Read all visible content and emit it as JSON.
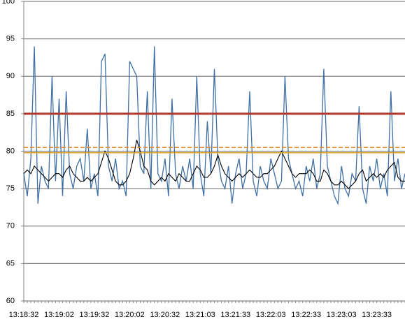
{
  "chart_data": {
    "type": "line",
    "categories": [
      "13:18:32",
      null,
      null,
      null,
      null,
      null,
      null,
      null,
      null,
      null,
      "13:19:02",
      null,
      null,
      null,
      null,
      null,
      null,
      null,
      null,
      null,
      "13:19:32",
      null,
      null,
      null,
      null,
      null,
      null,
      null,
      null,
      null,
      "13:20:02",
      null,
      null,
      null,
      null,
      null,
      null,
      null,
      null,
      null,
      "13:20:32",
      null,
      null,
      null,
      null,
      null,
      null,
      null,
      null,
      null,
      "13:21:03",
      null,
      null,
      null,
      null,
      null,
      null,
      null,
      null,
      null,
      "13:21:33",
      null,
      null,
      null,
      null,
      null,
      null,
      null,
      null,
      null,
      "13:22:03",
      null,
      null,
      null,
      null,
      null,
      null,
      null,
      null,
      null,
      "13:22:33",
      null,
      null,
      null,
      null,
      null,
      null,
      null,
      null,
      null,
      "13:23:03",
      null,
      null,
      null,
      null,
      null,
      null,
      null,
      null,
      null,
      "13:23:33",
      null,
      null,
      null,
      null,
      null,
      null,
      null,
      null
    ],
    "series": [
      {
        "color": "#3f6fa5",
        "values": [
          77,
          74,
          79,
          94,
          73,
          78,
          76,
          75,
          90,
          76,
          87,
          74,
          88,
          77,
          75,
          78,
          79,
          76,
          83,
          75,
          77,
          74,
          92,
          93,
          78,
          76,
          79,
          75,
          76,
          74,
          92,
          91,
          90,
          78,
          77,
          88,
          75,
          94,
          77,
          76,
          79,
          74,
          87,
          77,
          75,
          78,
          76,
          79,
          75,
          90,
          77,
          74,
          84,
          77,
          91,
          79,
          76,
          75,
          78,
          73,
          77,
          79,
          75,
          77,
          88,
          76,
          74,
          78,
          76,
          75,
          79,
          77,
          75,
          76,
          90,
          79,
          77,
          75,
          76,
          74,
          78,
          76,
          79,
          75,
          77,
          91,
          78,
          76,
          74,
          73,
          78,
          75,
          74,
          77,
          76,
          86,
          75,
          73,
          78,
          76,
          79,
          75,
          77,
          74,
          88,
          76,
          79,
          75,
          77
        ]
      },
      {
        "color": "#000000",
        "values": [
          77,
          77.5,
          77,
          78,
          77.5,
          77,
          76.5,
          76,
          76.5,
          77,
          77,
          76.5,
          77.5,
          78,
          77,
          76.5,
          76,
          76,
          76.5,
          76,
          76.5,
          77,
          78.5,
          80,
          79,
          77.5,
          76,
          75.5,
          75.5,
          76,
          77,
          79,
          81.5,
          80,
          78,
          77.5,
          76,
          75.5,
          76,
          76.5,
          76,
          77,
          76.5,
          76,
          77,
          76.5,
          76,
          76,
          77,
          78,
          77.5,
          76.5,
          76.5,
          77,
          78,
          79.5,
          78,
          77,
          76.5,
          76,
          76.5,
          77,
          76.5,
          77,
          77.5,
          77,
          76.5,
          76.5,
          77,
          77,
          77.5,
          78,
          79,
          80,
          79,
          78,
          77,
          76.5,
          77,
          77,
          77,
          77.5,
          77,
          76,
          76,
          77.5,
          77,
          76,
          75.5,
          75.5,
          76,
          75.5,
          75,
          75.5,
          76,
          77,
          77.5,
          76,
          76.5,
          77,
          76.5,
          77,
          76.5,
          77.5,
          78,
          78.5,
          76.5,
          76,
          76
        ]
      }
    ],
    "reference_lines": [
      {
        "value": 85,
        "color": "#b03a2e",
        "style": "solid"
      },
      {
        "value": 80.5,
        "color": "#e08a2c",
        "style": "dashed"
      },
      {
        "value": 79.8,
        "color": "#e0a030",
        "style": "solid"
      }
    ],
    "ylim": [
      60,
      100
    ],
    "yticks": [
      60,
      65,
      70,
      75,
      80,
      85,
      90,
      95,
      100
    ],
    "grid": true
  }
}
